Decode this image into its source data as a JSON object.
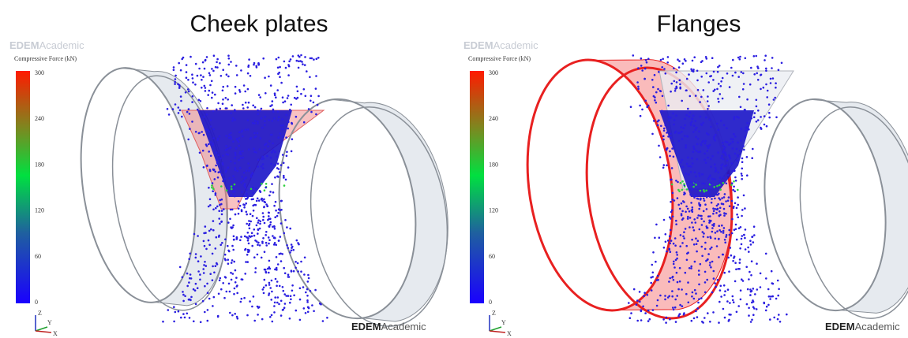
{
  "panels": [
    {
      "title": "Cheek plates",
      "watermark_top": {
        "brand": "EDEM",
        "suffix": "Academic"
      },
      "legend": {
        "title": "Compressive Force (kN)",
        "ticks": [
          300,
          240,
          180,
          120,
          60,
          0
        ]
      },
      "watermark_bottom": {
        "brand": "EDEM",
        "suffix": "Academic"
      },
      "axes": [
        "Z",
        "Y",
        "X"
      ]
    },
    {
      "title": "Flanges",
      "watermark_top": {
        "brand": "EDEM",
        "suffix": "Academic"
      },
      "legend": {
        "title": "Compressive Force (kN)",
        "ticks": [
          300,
          240,
          180,
          120,
          60,
          0
        ]
      },
      "watermark_bottom": {
        "brand": "EDEM",
        "suffix": "Academic"
      },
      "axes": [
        "Z",
        "Y",
        "X"
      ]
    }
  ]
}
